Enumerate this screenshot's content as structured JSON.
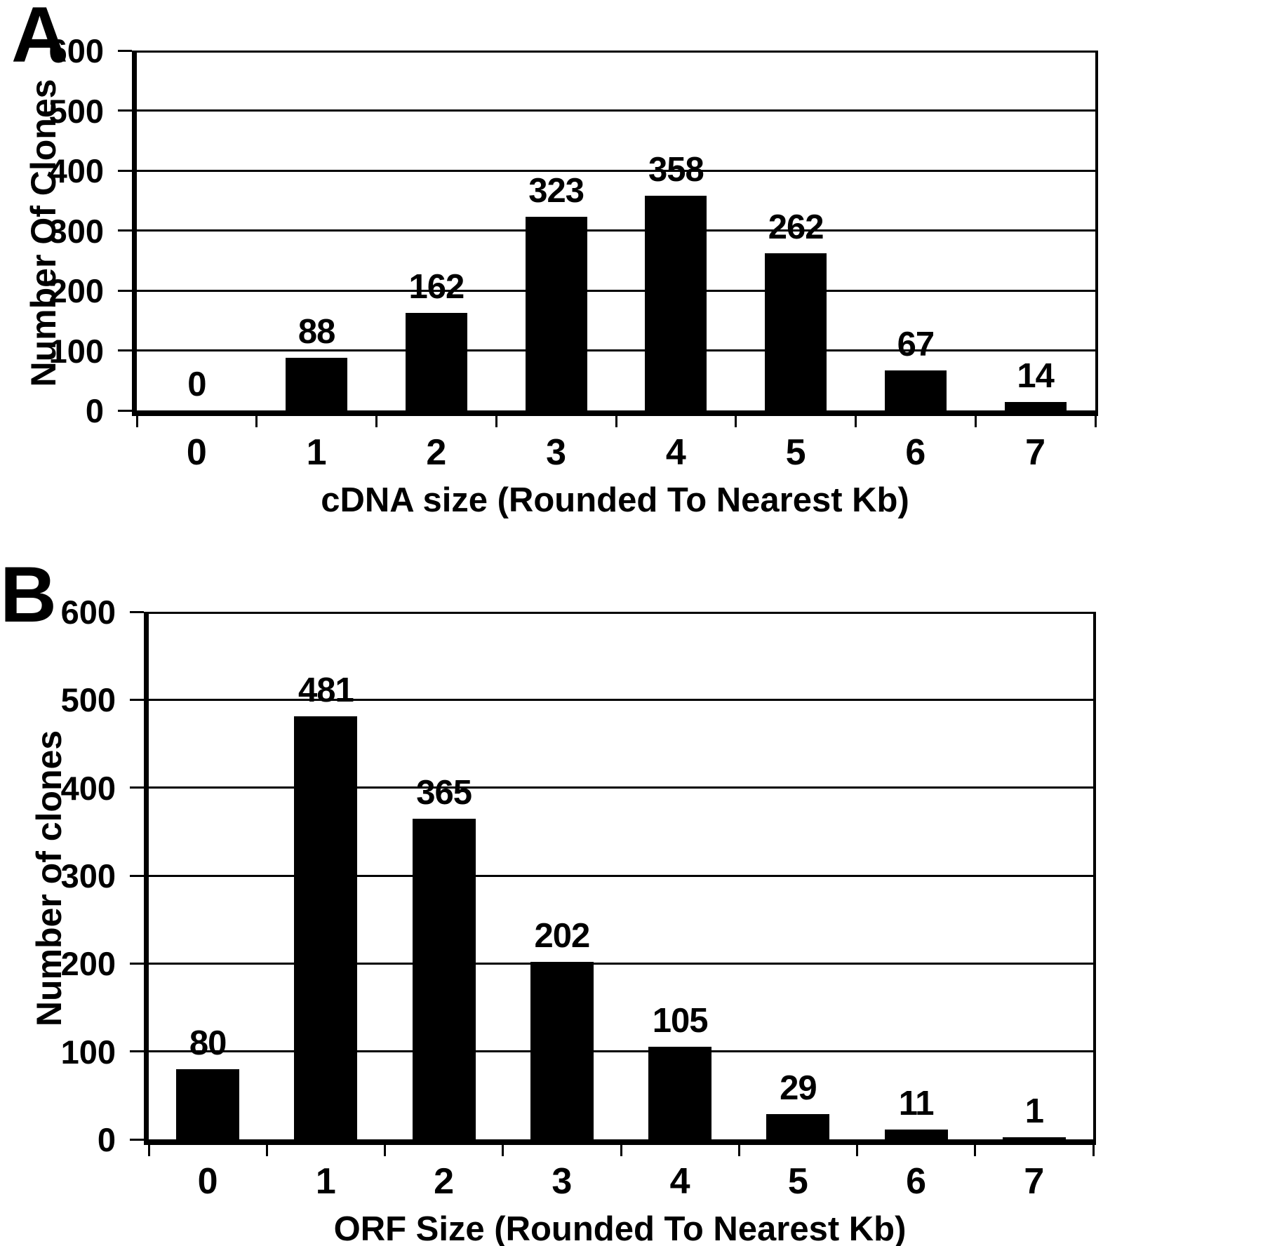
{
  "figure": {
    "background_color": "#ffffff",
    "bar_color": "#000000",
    "text_color": "#000000",
    "panel_labels": [
      "A",
      "B"
    ]
  },
  "chart_data": [
    {
      "type": "bar",
      "panel": "A",
      "categories": [
        "0",
        "1",
        "2",
        "3",
        "4",
        "5",
        "6",
        "7"
      ],
      "values": [
        0,
        88,
        162,
        323,
        358,
        262,
        67,
        14
      ],
      "bar_value_labels": [
        "0",
        "88",
        "162",
        "323",
        "358",
        "262",
        "67",
        "14"
      ],
      "xlabel": "cDNA size (Rounded To Nearest Kb)",
      "ylabel": "Number Of Clones",
      "ylim": [
        0,
        600
      ],
      "yticks": [
        0,
        100,
        200,
        300,
        400,
        500,
        600
      ],
      "grid": true,
      "legend": "none",
      "bar_color": "#000000"
    },
    {
      "type": "bar",
      "panel": "B",
      "categories": [
        "0",
        "1",
        "2",
        "3",
        "4",
        "5",
        "6",
        "7"
      ],
      "values": [
        80,
        481,
        365,
        202,
        105,
        29,
        11,
        1
      ],
      "bar_value_labels": [
        "80",
        "481",
        "365",
        "202",
        "105",
        "29",
        "11",
        "1"
      ],
      "xlabel": "ORF Size (Rounded To Nearest Kb)",
      "ylabel": "Number of clones",
      "ylim": [
        0,
        600
      ],
      "yticks": [
        0,
        100,
        200,
        300,
        400,
        500,
        600
      ],
      "grid": true,
      "legend": "none",
      "bar_color": "#000000"
    }
  ]
}
